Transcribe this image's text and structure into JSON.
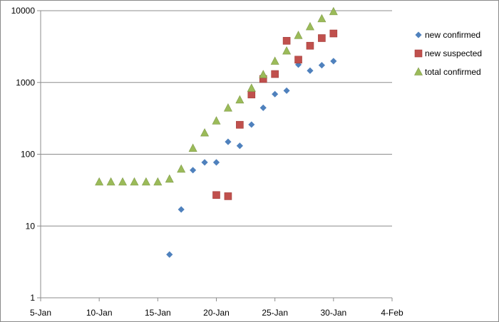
{
  "chart_data": {
    "type": "scatter",
    "title": "",
    "xlabel": "",
    "ylabel": "",
    "x_scale": "date",
    "y_scale": "log",
    "xlim": [
      "5-Jan",
      "4-Feb"
    ],
    "ylim": [
      1,
      10000
    ],
    "x_ticks": [
      "5-Jan",
      "10-Jan",
      "15-Jan",
      "20-Jan",
      "25-Jan",
      "30-Jan",
      "4-Feb"
    ],
    "y_ticks": [
      "1",
      "10",
      "100",
      "1000",
      "10000"
    ],
    "grid": "horizontal",
    "legend_position": "right",
    "series": [
      {
        "name": "new confirmed",
        "marker": "diamond",
        "color": "#4f81bd",
        "points": [
          {
            "x": "16-Jan",
            "y": 4
          },
          {
            "x": "17-Jan",
            "y": 17
          },
          {
            "x": "18-Jan",
            "y": 60
          },
          {
            "x": "19-Jan",
            "y": 77
          },
          {
            "x": "20-Jan",
            "y": 77
          },
          {
            "x": "21-Jan",
            "y": 149
          },
          {
            "x": "22-Jan",
            "y": 131
          },
          {
            "x": "23-Jan",
            "y": 259
          },
          {
            "x": "24-Jan",
            "y": 444
          },
          {
            "x": "25-Jan",
            "y": 688
          },
          {
            "x": "26-Jan",
            "y": 769
          },
          {
            "x": "27-Jan",
            "y": 1771
          },
          {
            "x": "28-Jan",
            "y": 1459
          },
          {
            "x": "29-Jan",
            "y": 1737
          },
          {
            "x": "30-Jan",
            "y": 1982
          }
        ]
      },
      {
        "name": "new suspected",
        "marker": "square",
        "color": "#c0504d",
        "points": [
          {
            "x": "20-Jan",
            "y": 27
          },
          {
            "x": "21-Jan",
            "y": 26
          },
          {
            "x": "22-Jan",
            "y": 257
          },
          {
            "x": "23-Jan",
            "y": 680
          },
          {
            "x": "24-Jan",
            "y": 1118
          },
          {
            "x": "25-Jan",
            "y": 1309
          },
          {
            "x": "26-Jan",
            "y": 3806
          },
          {
            "x": "27-Jan",
            "y": 2077
          },
          {
            "x": "28-Jan",
            "y": 3248
          },
          {
            "x": "29-Jan",
            "y": 4148
          },
          {
            "x": "30-Jan",
            "y": 4812
          }
        ]
      },
      {
        "name": "total confirmed",
        "marker": "triangle",
        "color": "#9bbb59",
        "points": [
          {
            "x": "10-Jan",
            "y": 41
          },
          {
            "x": "11-Jan",
            "y": 41
          },
          {
            "x": "12-Jan",
            "y": 41
          },
          {
            "x": "13-Jan",
            "y": 41
          },
          {
            "x": "14-Jan",
            "y": 41
          },
          {
            "x": "15-Jan",
            "y": 41
          },
          {
            "x": "16-Jan",
            "y": 45
          },
          {
            "x": "17-Jan",
            "y": 62
          },
          {
            "x": "18-Jan",
            "y": 121
          },
          {
            "x": "19-Jan",
            "y": 198
          },
          {
            "x": "20-Jan",
            "y": 291
          },
          {
            "x": "21-Jan",
            "y": 440
          },
          {
            "x": "22-Jan",
            "y": 571
          },
          {
            "x": "23-Jan",
            "y": 830
          },
          {
            "x": "24-Jan",
            "y": 1287
          },
          {
            "x": "25-Jan",
            "y": 1975
          },
          {
            "x": "26-Jan",
            "y": 2744
          },
          {
            "x": "27-Jan",
            "y": 4515
          },
          {
            "x": "28-Jan",
            "y": 5974
          },
          {
            "x": "29-Jan",
            "y": 7711
          },
          {
            "x": "30-Jan",
            "y": 9692
          }
        ]
      }
    ]
  }
}
